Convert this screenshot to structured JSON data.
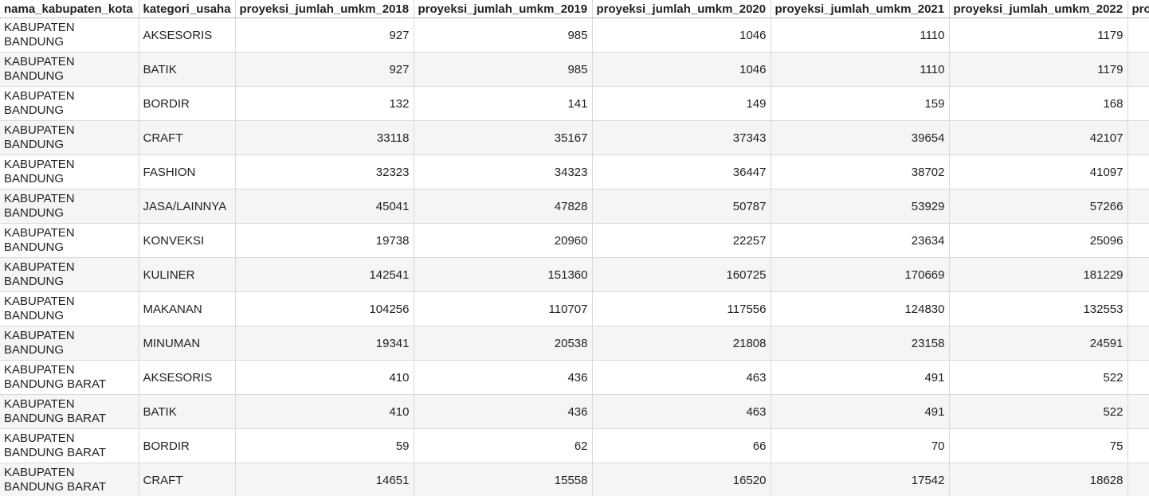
{
  "headers": [
    "nama_kabupaten_kota",
    "kategori_usaha",
    "proyeksi_jumlah_umkm_2018",
    "proyeksi_jumlah_umkm_2019",
    "proyeksi_jumlah_umkm_2020",
    "proyeksi_jumlah_umkm_2021",
    "proyeksi_jumlah_umkm_2022",
    "pro"
  ],
  "rows": [
    [
      "KABUPATEN BANDUNG",
      "AKSESORIS",
      "927",
      "985",
      "1046",
      "1110",
      "1179",
      ""
    ],
    [
      "KABUPATEN BANDUNG",
      "BATIK",
      "927",
      "985",
      "1046",
      "1110",
      "1179",
      ""
    ],
    [
      "KABUPATEN BANDUNG",
      "BORDIR",
      "132",
      "141",
      "149",
      "159",
      "168",
      ""
    ],
    [
      "KABUPATEN BANDUNG",
      "CRAFT",
      "33118",
      "35167",
      "37343",
      "39654",
      "42107",
      ""
    ],
    [
      "KABUPATEN BANDUNG",
      "FASHION",
      "32323",
      "34323",
      "36447",
      "38702",
      "41097",
      ""
    ],
    [
      "KABUPATEN BANDUNG",
      "JASA/LAINNYA",
      "45041",
      "47828",
      "50787",
      "53929",
      "57266",
      ""
    ],
    [
      "KABUPATEN BANDUNG",
      "KONVEKSI",
      "19738",
      "20960",
      "22257",
      "23634",
      "25096",
      ""
    ],
    [
      "KABUPATEN BANDUNG",
      "KULINER",
      "142541",
      "151360",
      "160725",
      "170669",
      "181229",
      ""
    ],
    [
      "KABUPATEN BANDUNG",
      "MAKANAN",
      "104256",
      "110707",
      "117556",
      "124830",
      "132553",
      ""
    ],
    [
      "KABUPATEN BANDUNG",
      "MINUMAN",
      "19341",
      "20538",
      "21808",
      "23158",
      "24591",
      ""
    ],
    [
      "KABUPATEN BANDUNG BARAT",
      "AKSESORIS",
      "410",
      "436",
      "463",
      "491",
      "522",
      ""
    ],
    [
      "KABUPATEN BANDUNG BARAT",
      "BATIK",
      "410",
      "436",
      "463",
      "491",
      "522",
      ""
    ],
    [
      "KABUPATEN BANDUNG BARAT",
      "BORDIR",
      "59",
      "62",
      "66",
      "70",
      "75",
      ""
    ],
    [
      "KABUPATEN BANDUNG BARAT",
      "CRAFT",
      "14651",
      "15558",
      "16520",
      "17542",
      "18628",
      ""
    ]
  ]
}
